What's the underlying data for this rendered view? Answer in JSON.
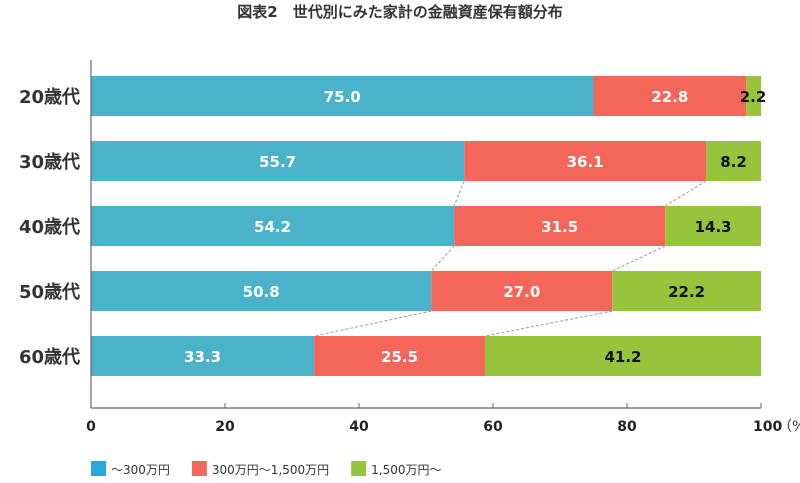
{
  "chart_data": {
    "type": "bar",
    "orientation": "horizontal",
    "stacked": true,
    "title": "図表2　世代別にみた家計の金融資産保有額分布",
    "categories": [
      "20歳代",
      "30歳代",
      "40歳代",
      "50歳代",
      "60歳代"
    ],
    "series": [
      {
        "name": "〜300万円",
        "color": "#4bb3c9",
        "legend_color": "#29a8e0",
        "values": [
          75.0,
          55.7,
          54.2,
          50.8,
          33.3
        ]
      },
      {
        "name": "300万円〜1,500万円",
        "color": "#f5665a",
        "legend_color": "#f5665a",
        "values": [
          22.8,
          36.1,
          31.5,
          27.0,
          25.5
        ]
      },
      {
        "name": "1,500万円〜",
        "color": "#96c43a",
        "legend_color": "#96c43a",
        "values": [
          2.2,
          8.2,
          14.3,
          22.2,
          41.2
        ]
      }
    ],
    "xlim": [
      0,
      100
    ],
    "xticks": [
      "0",
      "20",
      "40",
      "60",
      "80",
      "100"
    ],
    "xunit": "（%",
    "grid": false,
    "legend": "bottom-left"
  }
}
